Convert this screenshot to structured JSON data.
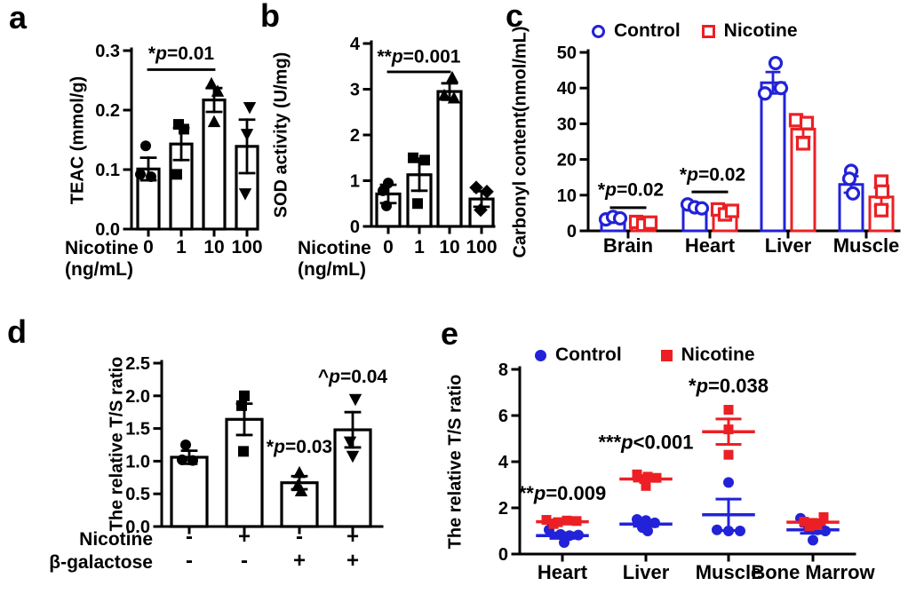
{
  "colors": {
    "control_blue": "#2222d8",
    "nicotine_red": "#ec2024",
    "ink": "#000000"
  },
  "chart_data": [
    {
      "id": "a",
      "panel_label": "a",
      "type": "bar",
      "ylabel": "TEAC (mmol/g)",
      "ylim": [
        0,
        0.3
      ],
      "yticks": [
        0,
        0.1,
        0.2,
        0.3
      ],
      "ytick_labels": [
        "0.0",
        "0.1",
        "0.2",
        "0.3"
      ],
      "x_prefix_lines": [
        "Nicotine",
        "(ng/mL)"
      ],
      "categories": [
        "0",
        "1",
        "10",
        "100"
      ],
      "values": [
        0.101,
        0.143,
        0.217,
        0.139
      ],
      "errors": [
        0.019,
        0.027,
        0.02,
        0.045
      ],
      "point_markers": [
        "circle",
        "square",
        "triangle-up",
        "triangle-down"
      ],
      "points": [
        [
          [
            -3,
            0.14
          ],
          [
            -9,
            0.092
          ],
          [
            3,
            0.088
          ]
        ],
        [
          [
            -3,
            0.176
          ],
          [
            3,
            0.168
          ],
          [
            -5,
            0.092
          ]
        ],
        [
          [
            -3,
            0.244
          ],
          [
            4,
            0.231
          ],
          [
            0,
            0.18
          ]
        ],
        [
          [
            3,
            0.205
          ],
          [
            0,
            0.16
          ],
          [
            -2,
            0.06
          ]
        ]
      ],
      "annotations": [
        {
          "text": "*p=0.01",
          "from": 0,
          "to": 2,
          "line_y": 0.268,
          "text_y": 0.285
        }
      ]
    },
    {
      "id": "b",
      "panel_label": "b",
      "type": "bar",
      "ylabel": "SOD activity (U/mg)",
      "ylim": [
        0,
        4
      ],
      "yticks": [
        0,
        1,
        2,
        3,
        4
      ],
      "ytick_labels": [
        "0",
        "1",
        "2",
        "3",
        "4"
      ],
      "x_prefix_lines": [
        "Nicotine",
        "(ng/mL)"
      ],
      "categories": [
        "0",
        "1",
        "10",
        "100"
      ],
      "values": [
        0.71,
        1.13,
        2.95,
        0.6
      ],
      "errors": [
        0.2,
        0.35,
        0.18,
        0.17
      ],
      "point_markers": [
        "circle",
        "square",
        "triangle-up",
        "diamond"
      ],
      "points": [
        [
          [
            0,
            0.95
          ],
          [
            -6,
            0.78
          ],
          [
            -2,
            0.45
          ]
        ],
        [
          [
            -7,
            1.5
          ],
          [
            6,
            1.45
          ],
          [
            -2,
            0.5
          ]
        ],
        [
          [
            3,
            3.25
          ],
          [
            -6,
            2.86
          ],
          [
            5,
            2.8
          ]
        ],
        [
          [
            -6,
            0.85
          ],
          [
            6,
            0.76
          ],
          [
            -1,
            0.36
          ]
        ]
      ],
      "annotations": [
        {
          "text": "**p=0.001",
          "from": 0,
          "to": 2,
          "line_y": 3.38,
          "text_y": 3.58
        }
      ]
    },
    {
      "id": "c",
      "panel_label": "c",
      "type": "grouped_bar",
      "ylabel": "Carbonyl content(nmol/mL)",
      "ylim": [
        0,
        50
      ],
      "yticks": [
        0,
        10,
        20,
        30,
        40,
        50
      ],
      "ytick_labels": [
        "0",
        "10",
        "20",
        "30",
        "40",
        "50"
      ],
      "categories": [
        "Brain",
        "Heart",
        "Liver",
        "Muscle"
      ],
      "legend": [
        {
          "label": "Control",
          "marker": "circle-open",
          "color": "#2222d8"
        },
        {
          "label": "Nicotine",
          "marker": "square-open",
          "color": "#ec2024"
        }
      ],
      "series": [
        {
          "name": "Control",
          "color": "#2222d8",
          "marker": "circle-open",
          "values": [
            3.0,
            6.5,
            41.5,
            13.0
          ],
          "errors": [
            0.5,
            0.7,
            3.0,
            2.3
          ],
          "points": [
            [
              [
                -8,
                3.2
              ],
              [
                0,
                3.9
              ],
              [
                8,
                3.5
              ]
            ],
            [
              [
                -8,
                7.4
              ],
              [
                0,
                6.6
              ],
              [
                8,
                6.3
              ]
            ],
            [
              [
                -9,
                38.5
              ],
              [
                3,
                47.0
              ],
              [
                9,
                40.0
              ]
            ],
            [
              [
                0,
                16.8
              ],
              [
                -2,
                14.6
              ],
              [
                2,
                10.5
              ]
            ]
          ]
        },
        {
          "name": "Nicotine",
          "color": "#ec2024",
          "marker": "square-open",
          "values": [
            2.0,
            5.0,
            28.5,
            9.5
          ],
          "errors": [
            0.5,
            0.8,
            2.2,
            2.6
          ],
          "points": [
            [
              [
                -8,
                2.5
              ],
              [
                0,
                1.7
              ],
              [
                8,
                2.3
              ]
            ],
            [
              [
                -8,
                6.0
              ],
              [
                0,
                4.6
              ],
              [
                8,
                5.6
              ]
            ],
            [
              [
                -8,
                31.0
              ],
              [
                4,
                30.2
              ],
              [
                0,
                24.5
              ]
            ],
            [
              [
                0,
                13.8
              ],
              [
                1,
                11.0
              ],
              [
                0,
                5.8
              ]
            ]
          ]
        }
      ],
      "annotations": [
        {
          "text": "*p=0.02",
          "cat": 0,
          "line_y": 6.5,
          "text_y": 9.8
        },
        {
          "text": "*p=0.02",
          "cat": 1,
          "line_y": 10.9,
          "text_y": 14.0
        }
      ]
    },
    {
      "id": "d",
      "panel_label": "d",
      "type": "bar",
      "ylabel": "The relative T/S ratio",
      "ylim": [
        0,
        2.5
      ],
      "yticks": [
        0,
        0.5,
        1,
        1.5,
        2,
        2.5
      ],
      "ytick_labels": [
        "0.0",
        "0.5",
        "1.0",
        "1.5",
        "2.0",
        "2.5"
      ],
      "categories": [
        "",
        "",
        "",
        ""
      ],
      "values": [
        1.06,
        1.64,
        0.67,
        1.48
      ],
      "errors": [
        0.1,
        0.24,
        0.1,
        0.27
      ],
      "point_markers": [
        "circle",
        "square",
        "triangle-up",
        "triangle-down"
      ],
      "points": [
        [
          [
            -4,
            1.25
          ],
          [
            -8,
            1.02
          ],
          [
            4,
            1.01
          ]
        ],
        [
          [
            0,
            2.0
          ],
          [
            -3,
            1.85
          ],
          [
            -1,
            1.15
          ]
        ],
        [
          [
            0,
            0.82
          ],
          [
            -2,
            0.62
          ],
          [
            2,
            0.54
          ]
        ],
        [
          [
            3,
            1.95
          ],
          [
            -3,
            1.3
          ],
          [
            0,
            1.08
          ]
        ]
      ],
      "xrows": [
        {
          "label": "Nicotine",
          "values": [
            "-",
            "+",
            "-",
            "+"
          ]
        },
        {
          "label": "β-galactose",
          "values": [
            "-",
            "-",
            "+",
            "+"
          ]
        }
      ],
      "annotations": [
        {
          "text": "*p=0.03",
          "bar": 2,
          "text_y": 1.13
        },
        {
          "text": "^p=0.04",
          "bar": 3,
          "text_y": 2.2
        }
      ]
    },
    {
      "id": "e",
      "panel_label": "e",
      "type": "scatter",
      "ylabel": "The relative T/S ratio",
      "ylim": [
        0,
        8
      ],
      "yticks": [
        0,
        2,
        4,
        6,
        8
      ],
      "ytick_labels": [
        "0",
        "2",
        "4",
        "6",
        "8"
      ],
      "categories": [
        "Heart",
        "Liver",
        "Muscle",
        "Bone Marrow"
      ],
      "legend": [
        {
          "label": "Control",
          "marker": "circle",
          "color": "#2222d8"
        },
        {
          "label": "Nicotine",
          "marker": "square",
          "color": "#ec2024"
        }
      ],
      "series": [
        {
          "name": "Control",
          "color": "#2222d8",
          "marker": "circle",
          "groups": [
            {
              "mean": 0.8,
              "sem": 0.12,
              "points": [
                [
                  -15,
                  1.05
                ],
                [
                  -2,
                  0.85
                ],
                [
                  8,
                  0.8
                ],
                [
                  18,
                  0.82
                ],
                [
                  2,
                  0.5
                ]
              ]
            },
            {
              "mean": 1.3,
              "sem": 0.1,
              "points": [
                [
                  -10,
                  1.5
                ],
                [
                  0,
                  1.45
                ],
                [
                  10,
                  1.35
                ],
                [
                  -4,
                  1.15
                ],
                [
                  2,
                  1.0
                ]
              ]
            },
            {
              "mean": 1.7,
              "sem": 0.68,
              "points": [
                [
                  0,
                  3.1
                ],
                [
                  -13,
                  1.05
                ],
                [
                  0,
                  1.0
                ],
                [
                  13,
                  1.0
                ]
              ]
            },
            {
              "mean": 1.05,
              "sem": 0.15,
              "points": [
                [
                  -14,
                  1.55
                ],
                [
                  -5,
                  1.1
                ],
                [
                  5,
                  1.05
                ],
                [
                  14,
                  1.0
                ],
                [
                  0,
                  0.6
                ]
              ]
            }
          ]
        },
        {
          "name": "Nicotine",
          "color": "#ec2024",
          "marker": "square",
          "groups": [
            {
              "mean": 1.4,
              "sem": 0.08,
              "points": [
                [
                  -18,
                  1.48
                ],
                [
                  -5,
                  1.38
                ],
                [
                  5,
                  1.45
                ],
                [
                  16,
                  1.43
                ],
                [
                  -10,
                  1.3
                ]
              ]
            },
            {
              "mean": 3.25,
              "sem": 0.09,
              "points": [
                [
                  -10,
                  3.45
                ],
                [
                  2,
                  3.35
                ],
                [
                  12,
                  3.3
                ],
                [
                  -2,
                  3.25
                ],
                [
                  0,
                  2.95
                ]
              ]
            },
            {
              "mean": 5.3,
              "sem": 0.55,
              "points": [
                [
                  0,
                  6.25
                ],
                [
                  0,
                  5.4
                ],
                [
                  0,
                  4.3
                ]
              ]
            },
            {
              "mean": 1.38,
              "sem": 0.1,
              "points": [
                [
                  12,
                  1.6
                ],
                [
                  -10,
                  1.4
                ],
                [
                  0,
                  1.35
                ],
                [
                  5,
                  1.25
                ],
                [
                  -4,
                  1.2
                ]
              ]
            }
          ]
        }
      ],
      "annotations": [
        {
          "text": "**p=0.009",
          "cat": 0,
          "text_y": 2.35
        },
        {
          "text": "***p<0.001",
          "cat": 1,
          "text_y": 4.55
        },
        {
          "text": "*p=0.038",
          "cat": 2,
          "text_y": 7.0
        }
      ]
    }
  ]
}
